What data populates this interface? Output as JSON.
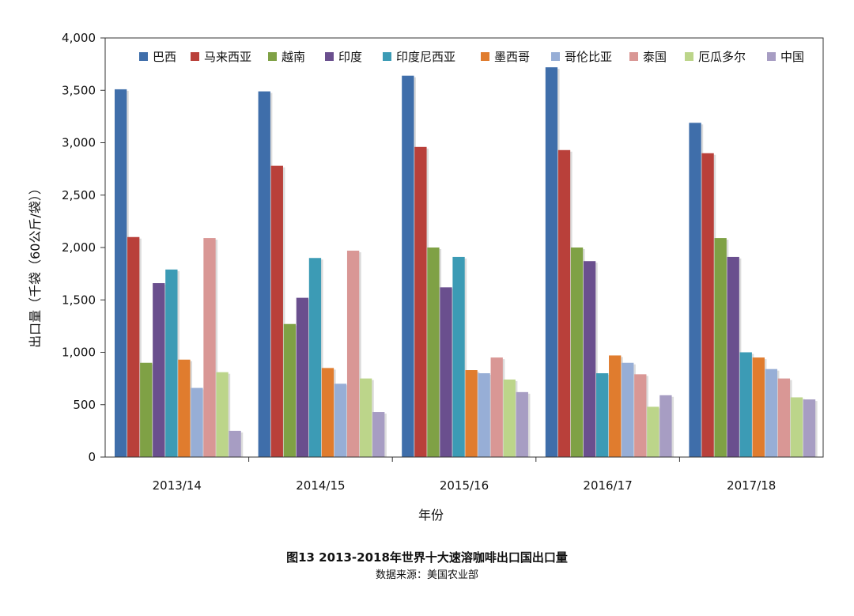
{
  "chart_data": {
    "type": "bar",
    "title": "",
    "xlabel": "年份",
    "ylabel": "出口量（千袋（60公斤/袋））",
    "categories": [
      "2013/14",
      "2014/15",
      "2015/16",
      "2016/17",
      "2017/18"
    ],
    "ylim": [
      0,
      4000
    ],
    "yticks": [
      0,
      500,
      1000,
      1500,
      2000,
      2500,
      3000,
      3500,
      4000
    ],
    "ytick_labels": [
      "0",
      "500",
      "1,000",
      "1,500",
      "2,000",
      "2,500",
      "3,000",
      "3,500",
      "4,000"
    ],
    "legend_position": "top",
    "grid": false,
    "series": [
      {
        "name": "巴西",
        "color": "#3f6eaa",
        "values": [
          3510,
          3490,
          3640,
          3720,
          3190
        ]
      },
      {
        "name": "马来西亚",
        "color": "#b9403a",
        "values": [
          2100,
          2780,
          2960,
          2930,
          2900
        ]
      },
      {
        "name": "越南",
        "color": "#7fa145",
        "values": [
          900,
          1270,
          2000,
          2000,
          2090
        ]
      },
      {
        "name": "印度",
        "color": "#6a4f8e",
        "values": [
          1660,
          1520,
          1620,
          1870,
          1910
        ]
      },
      {
        "name": "印度尼西亚",
        "color": "#3c9bb5",
        "values": [
          1790,
          1900,
          1910,
          800,
          1000
        ]
      },
      {
        "name": "墨西哥",
        "color": "#e07c2e",
        "values": [
          930,
          850,
          830,
          970,
          950
        ]
      },
      {
        "name": "哥伦比亚",
        "color": "#97aed6",
        "values": [
          660,
          700,
          800,
          900,
          840
        ]
      },
      {
        "name": "泰国",
        "color": "#d99795",
        "values": [
          2090,
          1970,
          950,
          790,
          750
        ]
      },
      {
        "name": "厄瓜多尔",
        "color": "#bcd58a",
        "values": [
          810,
          750,
          740,
          480,
          570
        ]
      },
      {
        "name": "中国",
        "color": "#a79dc3",
        "values": [
          250,
          430,
          620,
          590,
          550
        ]
      }
    ]
  },
  "caption": {
    "title": "图13 2013-2018年世界十大速溶咖啡出口国出口量",
    "source": "数据来源：美国农业部"
  }
}
